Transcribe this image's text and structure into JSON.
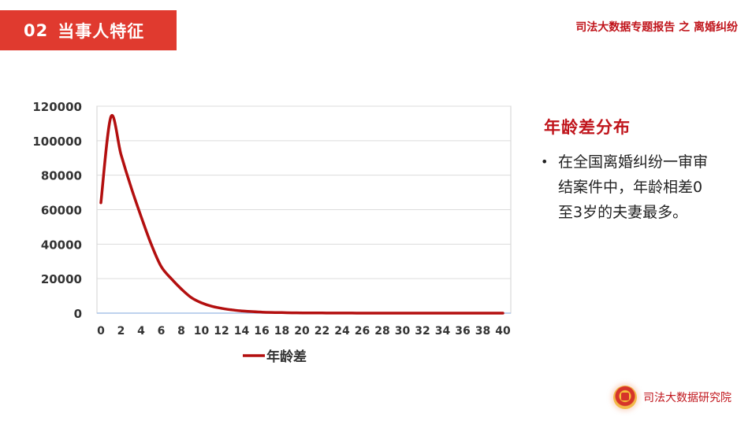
{
  "header": {
    "section_number": "02",
    "section_title": "当事人特征",
    "report_title": "司法大数据专题报告 之 离婚纠纷"
  },
  "panel": {
    "title": "年龄差分布",
    "bullet": "在全国离婚纠纷一审审结案件中，年龄相差0至3岁的夫妻最多。"
  },
  "footer": {
    "org_name": "司法大数据研究院",
    "emblem_icon": "court-emblem-icon"
  },
  "chart_data": {
    "type": "line",
    "x": [
      0,
      1,
      2,
      3,
      4,
      5,
      6,
      7,
      8,
      9,
      10,
      11,
      12,
      13,
      14,
      15,
      16,
      17,
      18,
      19,
      20,
      21,
      22,
      23,
      24,
      25,
      26,
      27,
      28,
      29,
      30,
      31,
      32,
      33,
      34,
      35,
      36,
      37,
      38,
      39,
      40
    ],
    "x_ticks": [
      0,
      2,
      4,
      6,
      8,
      10,
      12,
      14,
      16,
      18,
      20,
      22,
      24,
      26,
      28,
      30,
      32,
      34,
      36,
      38,
      40
    ],
    "series": [
      {
        "name": "年龄差",
        "color": "#b30f0f",
        "values": [
          64000,
          114000,
          92000,
          73000,
          56000,
          40000,
          27000,
          20000,
          14000,
          9000,
          6000,
          4000,
          2800,
          1900,
          1300,
          900,
          600,
          420,
          300,
          200,
          140,
          100,
          70,
          50,
          35,
          25,
          18,
          12,
          8,
          6,
          4,
          3,
          2,
          2,
          1,
          1,
          1,
          1,
          0,
          0,
          0
        ]
      }
    ],
    "y_ticks": [
      0,
      20000,
      40000,
      60000,
      80000,
      100000,
      120000
    ],
    "ylim": [
      0,
      120000
    ],
    "xlim": [
      0,
      40
    ],
    "grid": true,
    "legend_position": "bottom"
  }
}
